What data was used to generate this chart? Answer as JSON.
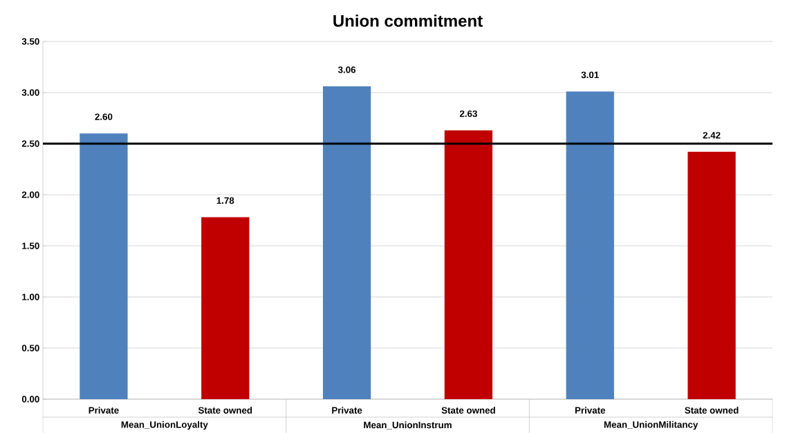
{
  "chart_data": {
    "type": "bar",
    "title": "Union commitment",
    "categories": [
      "Mean_UnionLoyalty",
      "Mean_UnionInstrum",
      "Mean_UnionMilitancy"
    ],
    "series": [
      {
        "name": "Private",
        "color": "#4f81bd",
        "values": [
          2.6,
          3.06,
          3.01
        ],
        "value_labels": [
          "2.60",
          "3.06",
          "3.01"
        ]
      },
      {
        "name": "State owned",
        "color": "#c00000",
        "values": [
          1.78,
          2.63,
          2.42
        ],
        "value_labels": [
          "1.78",
          "2.63",
          "2.42"
        ]
      }
    ],
    "ylim": [
      0,
      3.5
    ],
    "yticks": [
      {
        "value": 0,
        "label": "0.00"
      },
      {
        "value": 0.5,
        "label": "0.50"
      },
      {
        "value": 1,
        "label": "1.00"
      },
      {
        "value": 1.5,
        "label": "1.50"
      },
      {
        "value": 2,
        "label": "2.00"
      },
      {
        "value": 2.5,
        "label": "2.50"
      },
      {
        "value": 3,
        "label": "3.00"
      },
      {
        "value": 3.5,
        "label": "3.50"
      }
    ],
    "grid": "y",
    "legend": false,
    "ref_lines": [
      {
        "axis": "y",
        "value": 2.5,
        "color": "#000000"
      }
    ]
  }
}
